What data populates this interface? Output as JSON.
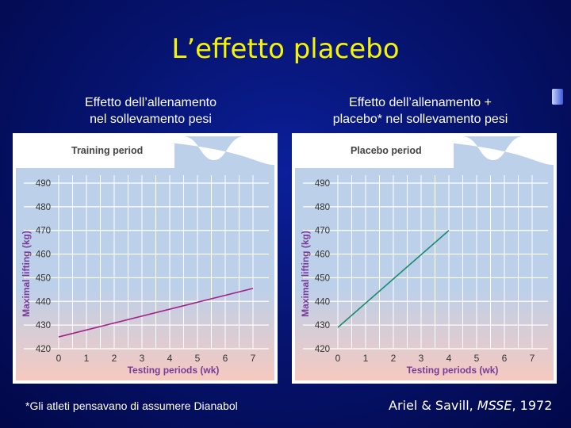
{
  "slide": {
    "title": "L’effetto placebo",
    "subtitle_left_line1": "Effetto dell’allenamento",
    "subtitle_left_line2": "nel sollevamento pesi",
    "subtitle_right_line1": "Effetto dell’allenamento +",
    "subtitle_right_line2": "placebo* nel sollevamento pesi",
    "footnote": "*Gli atleti pensavano di assumere Dianabol",
    "citation_authors": "Ariel & Savill, ",
    "citation_journal": "MSSE",
    "citation_year": ", 1972"
  },
  "colors": {
    "title": "#f6f400",
    "panel_top": "#bcd0ea",
    "panel_bottom": "#f6c9c0",
    "axis_label": "#7a3a9a",
    "line_left": "#a3208a",
    "line_right": "#1a8a70"
  },
  "chart_data": [
    {
      "type": "line",
      "title": "Training period",
      "xlabel": "Testing periods (wk)",
      "ylabel": "Maximal lifting (kg)",
      "xlim": [
        0,
        7
      ],
      "ylim": [
        420,
        490
      ],
      "xticks": [
        0,
        1,
        2,
        3,
        4,
        5,
        6,
        7
      ],
      "yticks": [
        420,
        430,
        440,
        450,
        460,
        470,
        480,
        490
      ],
      "grid": true,
      "series": [
        {
          "x": [
            0,
            7
          ],
          "y": [
            425,
            445.5
          ]
        }
      ]
    },
    {
      "type": "line",
      "title": "Placebo period",
      "xlabel": "Testing periods (wk)",
      "ylabel": "Maximal lifting (kg)",
      "xlim": [
        0,
        7
      ],
      "ylim": [
        420,
        490
      ],
      "xticks": [
        0,
        1,
        2,
        3,
        4,
        5,
        6,
        7
      ],
      "yticks": [
        420,
        430,
        440,
        450,
        460,
        470,
        480,
        490
      ],
      "grid": true,
      "series": [
        {
          "x": [
            0,
            4
          ],
          "y": [
            429,
            470
          ]
        }
      ]
    }
  ]
}
